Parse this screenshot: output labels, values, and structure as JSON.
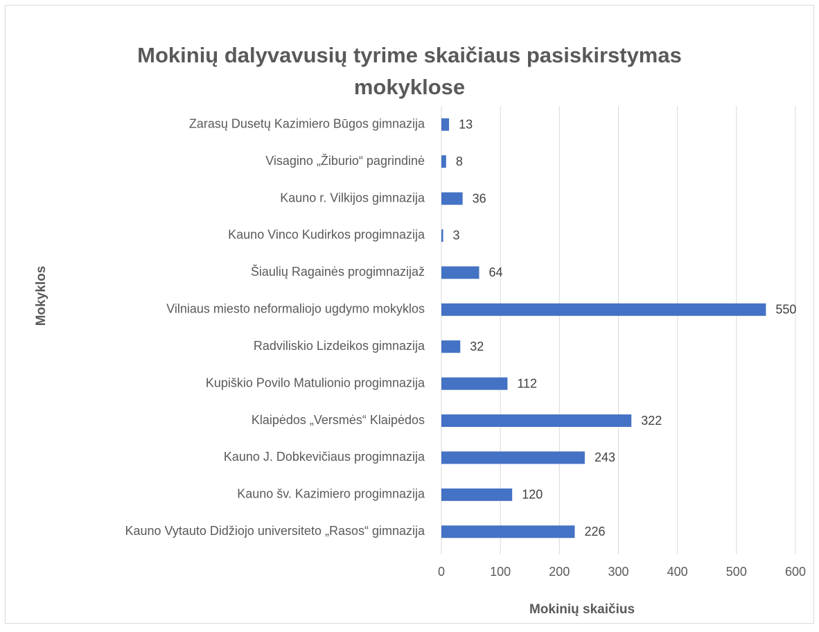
{
  "chart_data": {
    "type": "bar",
    "orientation": "horizontal",
    "title": "Mokinių dalyvavusių tyrime skaičiaus pasiskirstymas mokyklose",
    "x_label": "Mokinių skaičius",
    "y_label": "Mokyklos",
    "categories": [
      "Zarasų Dusetų Kazimiero Būgos gimnazija",
      "Visagino „Žiburio“ pagrindinė",
      "Kauno r. Vilkijos gimnazija",
      "Kauno Vinco Kudirkos progimnazija",
      "Šiaulių Ragainės progimnazijaž",
      "Vilniaus miesto neformaliojo ugdymo mokyklos",
      "Radviliskio Lizdeikos gimnazija",
      "Kupiškio Povilo Matulionio progimnazija",
      "Klaipėdos „Versmės“ Klaipėdos",
      "Kauno J. Dobkevičiaus progimnazija",
      "Kauno šv. Kazimiero progimnazija",
      "Kauno Vytauto Didžiojo universiteto „Rasos“ gimnazija"
    ],
    "values": [
      13,
      8,
      36,
      3,
      64,
      550,
      32,
      112,
      322,
      243,
      120,
      226
    ],
    "color": "#4472c4",
    "xlim": [
      0,
      600
    ],
    "xticks": [
      0,
      100,
      200,
      300,
      400,
      500,
      600
    ],
    "grid": true
  }
}
